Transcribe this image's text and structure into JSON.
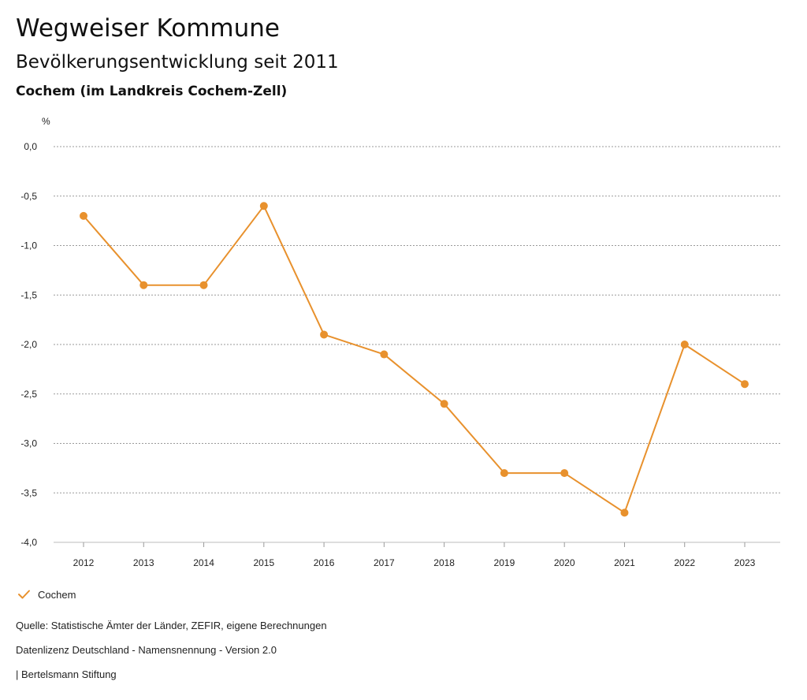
{
  "header": {
    "title": "Wegweiser Kommune",
    "subtitle": "Bevölkerungsentwicklung seit 2011",
    "region": "Cochem (im Landkreis Cochem-Zell)"
  },
  "chart_data": {
    "type": "line",
    "title": "Bevölkerungsentwicklung seit 2011",
    "ylabel": "%",
    "xlabel": "",
    "ylim": [
      -4.0,
      0.0
    ],
    "yticks": [
      0.0,
      -0.5,
      -1.0,
      -1.5,
      -2.0,
      -2.5,
      -3.0,
      -3.5,
      -4.0
    ],
    "ytick_labels": [
      "0,0",
      "-0,5",
      "-1,0",
      "-1,5",
      "-2,0",
      "-2,5",
      "-3,0",
      "-3,5",
      "-4,0"
    ],
    "categories": [
      "2012",
      "2013",
      "2014",
      "2015",
      "2016",
      "2017",
      "2018",
      "2019",
      "2020",
      "2021",
      "2022",
      "2023"
    ],
    "series": [
      {
        "name": "Cochem",
        "color": "#e8912d",
        "values": [
          -0.7,
          -1.4,
          -1.4,
          -0.6,
          -1.9,
          -2.1,
          -2.6,
          -3.3,
          -3.3,
          -3.7,
          -2.0,
          -2.4
        ]
      }
    ],
    "grid": true,
    "legend_position": "bottom-left"
  },
  "legend": {
    "label": "Cochem"
  },
  "footer": {
    "source": "Quelle: Statistische Ämter der Länder, ZEFIR, eigene Berechnungen",
    "license": "Datenlizenz Deutschland - Namensnennung - Version 2.0",
    "publisher": "| Bertelsmann Stiftung"
  }
}
